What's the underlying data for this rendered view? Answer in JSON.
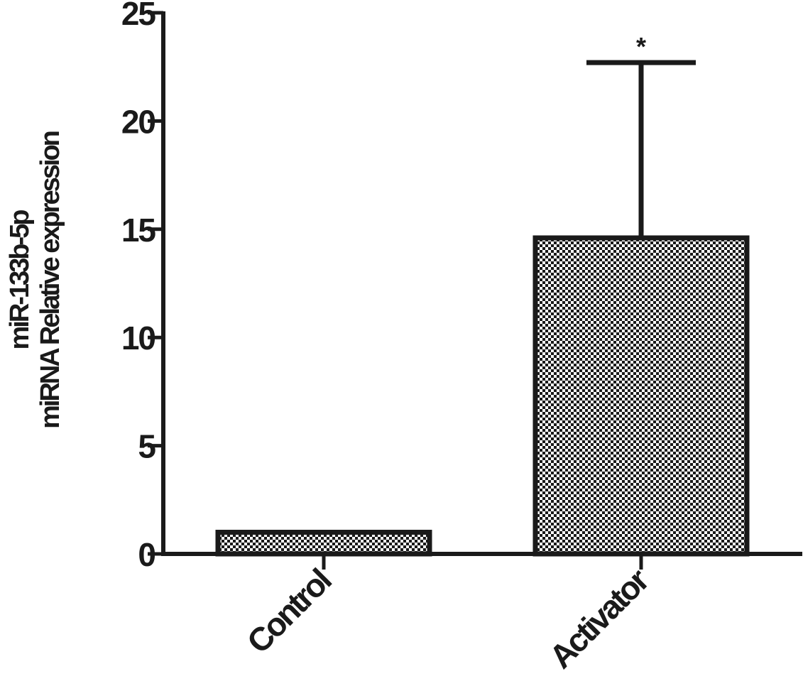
{
  "chart_data": {
    "type": "bar",
    "categories": [
      "Control",
      "Activator"
    ],
    "values": [
      1.0,
      14.6
    ],
    "error_upper": [
      null,
      22.7
    ],
    "annotations": [
      "",
      "*"
    ],
    "ylabel_lines": [
      "miR-133b-5p",
      "miRNA Relative expression"
    ],
    "xlabel": "",
    "ylim": [
      0,
      25
    ],
    "yticks": [
      0,
      5,
      10,
      15,
      20,
      25
    ],
    "ytick_labels": [
      "0",
      "5",
      "10",
      "15",
      "20",
      "25"
    ],
    "grid": false,
    "legend": "none",
    "bar_pattern": "checkerboard",
    "colors": {
      "ink": "#1a1a1a",
      "background": "#ffffff"
    }
  }
}
